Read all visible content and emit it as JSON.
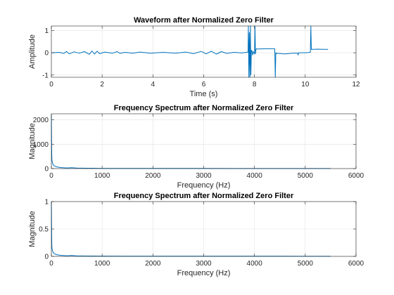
{
  "chart_data": [
    {
      "type": "line",
      "title": "Waveform after Normalized Zero Filter",
      "xlabel": "Time (s)",
      "ylabel": "Amplitude",
      "xlim": [
        0,
        12
      ],
      "ylim": [
        -1.1,
        1.2
      ],
      "xticks": [
        0,
        2,
        4,
        6,
        8,
        10,
        12
      ],
      "xtick_labels": [
        "0",
        "2",
        "4",
        "6",
        "8",
        "10",
        "12"
      ],
      "yticks": [
        -1,
        0,
        1
      ],
      "ytick_labels": [
        "-1",
        "0",
        "1"
      ],
      "grid": true,
      "color": "#0072BD",
      "series": [
        {
          "x": [
            0,
            0.3,
            0.5,
            0.6,
            0.7,
            0.9,
            1.1,
            1.3,
            1.5,
            1.6,
            1.7,
            1.8,
            1.9,
            2.1,
            2.4,
            2.6,
            2.7,
            2.9,
            3.2,
            3.5,
            3.9,
            4.4,
            4.9,
            5.3,
            5.6,
            5.9,
            6.1,
            6.3,
            6.5,
            6.7,
            6.9,
            7.2,
            7.5,
            7.75,
            7.76,
            7.78,
            7.8,
            7.82,
            7.84,
            7.86,
            7.88,
            7.9,
            7.93,
            7.96,
            8.0,
            8.02,
            8.04,
            8.06,
            8.08,
            8.1,
            8.5,
            8.8,
            8.82,
            8.84,
            8.86,
            8.88,
            8.9,
            9.2,
            9.5,
            9.7,
            9.72,
            9.74,
            10.0,
            10.2,
            10.22,
            10.24,
            10.26,
            10.28,
            10.3,
            10.5,
            10.7,
            10.9
          ],
          "y": [
            0,
            0.02,
            -0.03,
            0.06,
            -0.05,
            0.04,
            -0.02,
            0.05,
            -0.07,
            0.08,
            -0.06,
            0.07,
            -0.04,
            0.03,
            -0.02,
            0.05,
            -0.03,
            0.02,
            -0.02,
            0.03,
            -0.02,
            0.02,
            -0.02,
            0.03,
            -0.04,
            0.06,
            -0.05,
            0.07,
            -0.06,
            0.05,
            -0.03,
            0.02,
            -0.01,
            0.03,
            1.2,
            -1.1,
            0.9,
            -1.1,
            1.2,
            -1.0,
            0.1,
            0.1,
            -0.1,
            0.05,
            -0.05,
            1.2,
            -0.05,
            0.15,
            0.18,
            0.17,
            0.18,
            0.18,
            -1.1,
            0.0,
            -0.05,
            -0.02,
            -0.03,
            -0.05,
            -0.02,
            -0.02,
            -0.1,
            0.0,
            0.0,
            0.02,
            1.2,
            0.15,
            0.14,
            0.16,
            0.15,
            0.16,
            0.15,
            0.15
          ]
        }
      ]
    },
    {
      "type": "line",
      "title": "Frequency Spectrum after Normalized Zero Filter",
      "xlabel": "Frequency (Hz)",
      "ylabel": "Magnitude",
      "xlim": [
        0,
        6000
      ],
      "ylim": [
        0,
        2250
      ],
      "xticks": [
        0,
        1000,
        2000,
        3000,
        4000,
        5000,
        6000
      ],
      "xtick_labels": [
        "0",
        "1000",
        "2000",
        "3000",
        "4000",
        "5000",
        "6000"
      ],
      "yticks": [
        0,
        1000,
        2000
      ],
      "ytick_labels": [
        "0",
        "1000",
        "2000"
      ],
      "grid": true,
      "color": "#0072BD",
      "series": [
        {
          "x": [
            0,
            5,
            10,
            20,
            30,
            50,
            80,
            120,
            200,
            300,
            400,
            500,
            700,
            1000,
            1500,
            2000,
            2500,
            3000,
            3500,
            4000,
            4500,
            5000,
            5500
          ],
          "y": [
            2200,
            900,
            400,
            250,
            180,
            120,
            90,
            60,
            40,
            25,
            35,
            20,
            15,
            10,
            8,
            6,
            5,
            5,
            4,
            4,
            4,
            3,
            3
          ]
        }
      ]
    },
    {
      "type": "line",
      "title": "Frequency Spectrum after Normalized Zero Filter",
      "xlabel": "Frequency (Hz)",
      "ylabel": "Magnitude",
      "xlim": [
        0,
        6000
      ],
      "ylim": [
        0,
        1
      ],
      "xticks": [
        0,
        1000,
        2000,
        3000,
        4000,
        5000,
        6000
      ],
      "xtick_labels": [
        "0",
        "1000",
        "2000",
        "3000",
        "4000",
        "5000",
        "6000"
      ],
      "yticks": [
        0,
        0.5,
        1
      ],
      "ytick_labels": [
        "0",
        "0.5",
        "1"
      ],
      "grid": true,
      "color": "#0072BD",
      "series": [
        {
          "x": [
            0,
            5,
            10,
            20,
            30,
            50,
            80,
            120,
            200,
            300,
            400,
            500,
            700,
            1000,
            1500,
            2000,
            2500,
            3000,
            3500,
            4000,
            4500,
            5000,
            5500
          ],
          "y": [
            1.0,
            0.41,
            0.18,
            0.11,
            0.08,
            0.055,
            0.04,
            0.027,
            0.018,
            0.011,
            0.016,
            0.009,
            0.007,
            0.005,
            0.004,
            0.003,
            0.002,
            0.002,
            0.002,
            0.002,
            0.002,
            0.001,
            0.001
          ]
        }
      ]
    }
  ]
}
